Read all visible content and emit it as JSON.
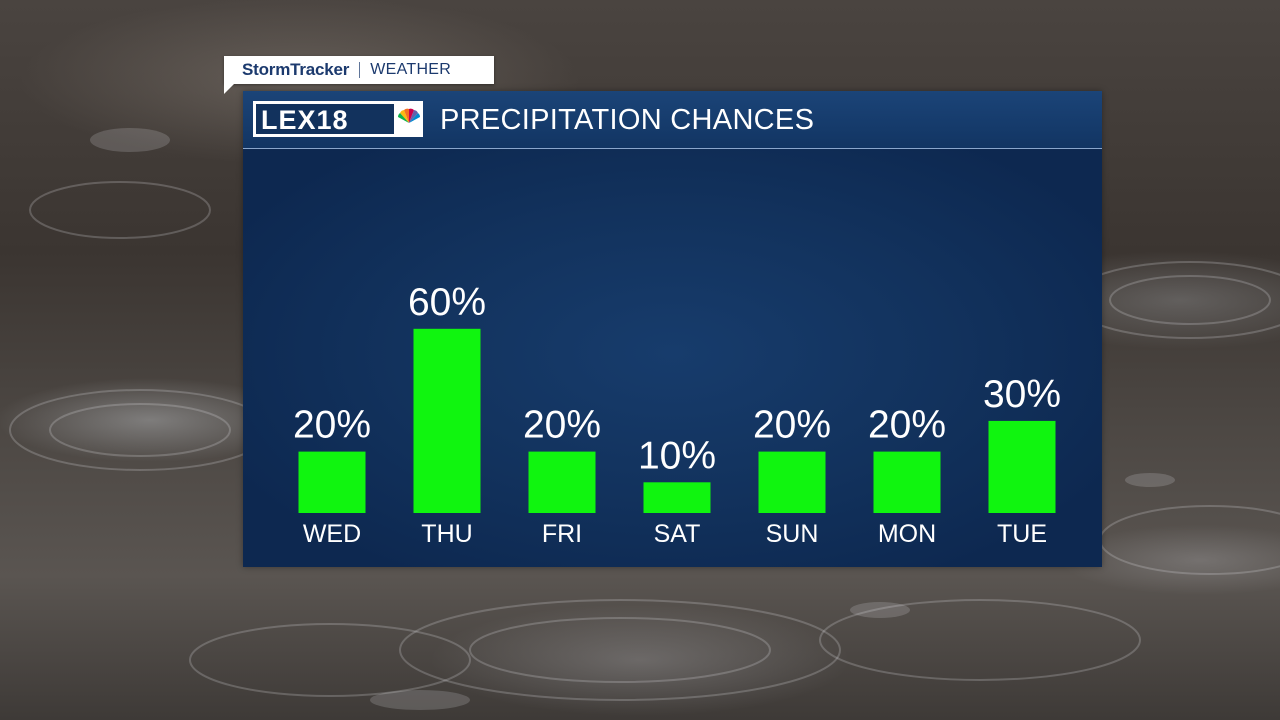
{
  "header": {
    "brand_primary": "StormTracker",
    "brand_secondary": "WEATHER",
    "logo_text": "LEX18",
    "title": "PRECIPITATION CHANCES"
  },
  "colors": {
    "bar": "#10f50f",
    "panel": "#12325d",
    "header": "#1b4478",
    "text": "#ffffff"
  },
  "chart_data": {
    "type": "bar",
    "title": "PRECIPITATION CHANCES",
    "categories": [
      "WED",
      "THU",
      "FRI",
      "SAT",
      "SUN",
      "MON",
      "TUE"
    ],
    "values": [
      20,
      60,
      20,
      10,
      20,
      20,
      30
    ],
    "value_labels": [
      "20%",
      "60%",
      "20%",
      "10%",
      "20%",
      "20%",
      "30%"
    ],
    "unit": "%",
    "xlabel": "",
    "ylabel": "",
    "grid": false,
    "legend": false
  }
}
